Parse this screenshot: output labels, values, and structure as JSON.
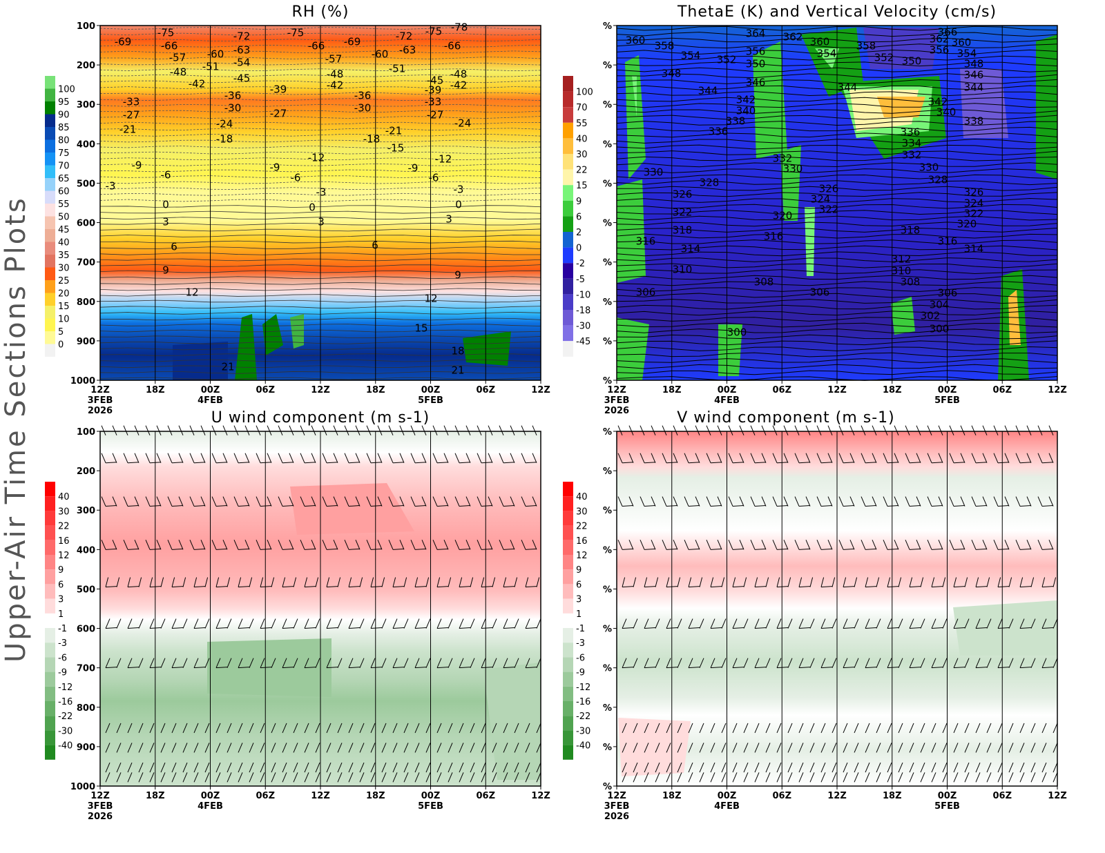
{
  "side_title": "Upper-Air Time Sections Plots",
  "x_axis": {
    "ticks": [
      "12Z",
      "18Z",
      "00Z",
      "06Z",
      "12Z",
      "18Z",
      "00Z",
      "06Z",
      "12Z"
    ],
    "dates": [
      "3FEB",
      "",
      "4FEB",
      "",
      "",
      "",
      "5FEB",
      "",
      ""
    ],
    "year": "2026"
  },
  "y_axis": {
    "ticks": [
      "100",
      "200",
      "300",
      "400",
      "500",
      "600",
      "700",
      "800",
      "900",
      "1000"
    ],
    "right_panel_tick_label": "%"
  },
  "chart_data": [
    {
      "type": "heatmap",
      "title": "RH (%)",
      "x_range": [
        "12Z 3FEB 2026",
        "12Z 5FEB 2026"
      ],
      "y_range": [
        100,
        1000
      ],
      "y_inverted": true,
      "colorbar": {
        "labels": [
          "100",
          "95",
          "90",
          "85",
          "80",
          "75",
          "70",
          "65",
          "60",
          "55",
          "50",
          "45",
          "40",
          "35",
          "30",
          "25",
          "20",
          "15",
          "10",
          "5",
          "0"
        ],
        "colors": [
          "#78e278",
          "#41b441",
          "#008000",
          "#062b8c",
          "#0a4bb4",
          "#0c6fe0",
          "#1492f5",
          "#32bef9",
          "#96d2fa",
          "#d8dcfa",
          "#fde2e2",
          "#f6c4b0",
          "#eeae96",
          "#e98c7c",
          "#e27460",
          "#ff5a14",
          "#ffa01a",
          "#ffd02a",
          "#f5f068",
          "#fff550",
          "#fffa96",
          "#f2f2f2"
        ]
      },
      "contour_labels": [
        "-69",
        "-75",
        "-72",
        "-75",
        "-66",
        "-69",
        "-72",
        "-75",
        "-78",
        "-66",
        "-66",
        "-57",
        "-60",
        "-63",
        "-51",
        "-54",
        "-48",
        "-45",
        "-42",
        "-39",
        "-36",
        "-30",
        "-33",
        "-27",
        "-21",
        "-24",
        "-18",
        "-27",
        "-57",
        "-48",
        "-42",
        "-60",
        "-63",
        "-51",
        "-36",
        "-30",
        "-21",
        "-18",
        "-15",
        "-12",
        "-9",
        "-6",
        "-3",
        "-9",
        "-6",
        "-3",
        "-45",
        "-39",
        "-33",
        "-27",
        "-24",
        "-12",
        "-9",
        "-6",
        "-3",
        "-48",
        "-42",
        "0",
        "3",
        "6",
        "9",
        "12",
        "0",
        "3",
        "0",
        "3",
        "6",
        "9",
        "12",
        "15",
        "18",
        "21",
        "21"
      ]
    },
    {
      "type": "heatmap",
      "title": "ThetaE (K) and Vertical Velocity (cm/s)",
      "x_range": [
        "12Z 3FEB 2026",
        "12Z 5FEB 2026"
      ],
      "colorbar": {
        "labels": [
          "100",
          "70",
          "55",
          "40",
          "30",
          "22",
          "15",
          "9",
          "6",
          "2",
          "0",
          "-2",
          "-5",
          "-10",
          "-18",
          "-30",
          "-45"
        ],
        "colors": [
          "#a51f1f",
          "#b82a2a",
          "#c83c3c",
          "#ffa000",
          "#ffbe3c",
          "#ffe278",
          "#fff5aa",
          "#78f578",
          "#3ccd3c",
          "#14a014",
          "#1464d2",
          "#1e3cff",
          "#2800a0",
          "#3020a0",
          "#4a3cc8",
          "#6e5ad6",
          "#8070e6",
          "#f2f2f2"
        ]
      },
      "contour_labels": [
        "360",
        "358",
        "354",
        "352",
        "348",
        "344",
        "364",
        "362",
        "360",
        "356",
        "354",
        "350",
        "346",
        "358",
        "352",
        "350",
        "362",
        "366",
        "360",
        "356",
        "354",
        "348",
        "346",
        "344",
        "342",
        "340",
        "338",
        "336",
        "344",
        "342",
        "340",
        "338",
        "336",
        "334",
        "332",
        "332",
        "330",
        "330",
        "328",
        "330",
        "328",
        "326",
        "322",
        "318",
        "316",
        "314",
        "310",
        "306",
        "326",
        "324",
        "322",
        "320",
        "316",
        "308",
        "306",
        "300",
        "318",
        "316",
        "314",
        "312",
        "310",
        "308",
        "306",
        "304",
        "302",
        "300",
        "326",
        "324",
        "322",
        "320"
      ]
    },
    {
      "type": "heatmap",
      "title": "U wind component (m s-1)",
      "x_range": [
        "12Z 3FEB 2026",
        "12Z 5FEB 2026"
      ],
      "y_range": [
        100,
        1000
      ],
      "colorbar": {
        "labels": [
          "40",
          "30",
          "22",
          "16",
          "12",
          "9",
          "6",
          "3",
          "1",
          "-1",
          "-3",
          "-6",
          "-9",
          "-12",
          "-16",
          "-22",
          "-30",
          "-40"
        ],
        "colors": [
          "#ff0000",
          "#ff2020",
          "#ff3a3a",
          "#ff5050",
          "#ff6a6a",
          "#ff8585",
          "#ffa0a0",
          "#ffbcbc",
          "#ffdcdc",
          "#ffffff",
          "#e5efe5",
          "#cce3cc",
          "#b5d6b5",
          "#9cca9c",
          "#82bd82",
          "#68b068",
          "#50a350",
          "#389638",
          "#208a20"
        ]
      }
    },
    {
      "type": "heatmap",
      "title": "V wind component (m s-1)",
      "x_range": [
        "12Z 3FEB 2026",
        "12Z 5FEB 2026"
      ],
      "colorbar": {
        "labels": [
          "40",
          "30",
          "22",
          "16",
          "12",
          "9",
          "6",
          "3",
          "1",
          "-1",
          "-3",
          "-6",
          "-9",
          "-12",
          "-16",
          "-22",
          "-30",
          "-40"
        ],
        "colors": [
          "#ff0000",
          "#ff2020",
          "#ff3a3a",
          "#ff5050",
          "#ff6a6a",
          "#ff8585",
          "#ffa0a0",
          "#ffbcbc",
          "#ffdcdc",
          "#ffffff",
          "#e5efe5",
          "#cce3cc",
          "#b5d6b5",
          "#9cca9c",
          "#82bd82",
          "#68b068",
          "#50a350",
          "#389638",
          "#208a20"
        ]
      }
    }
  ]
}
